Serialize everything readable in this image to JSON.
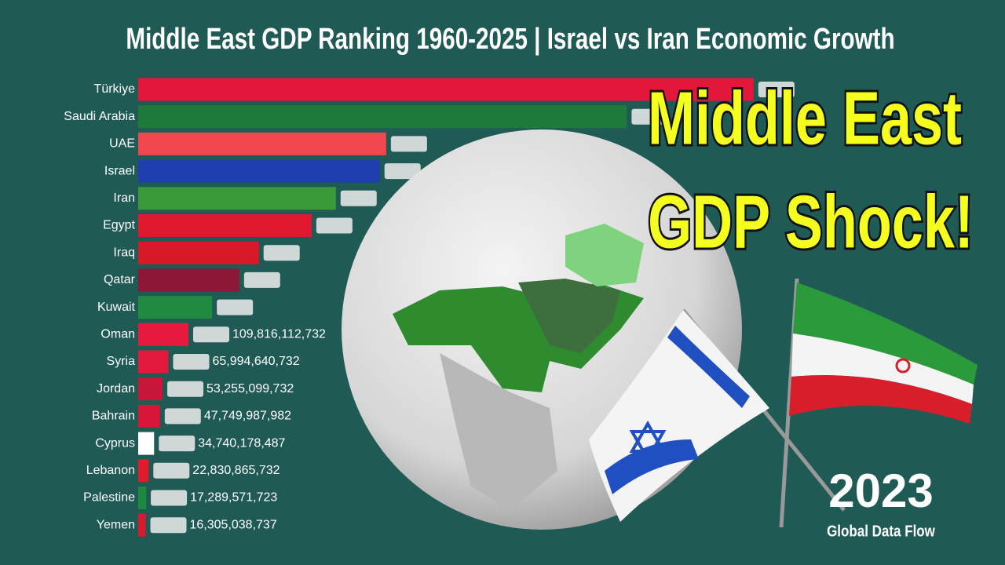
{
  "chart_data": {
    "type": "barh",
    "title": "Middle East GDP Ranking 1960-2025 | Israel vs Iran Economic Growth",
    "annotations": [
      "Middle East",
      "GDP Shock!"
    ],
    "year": "2023",
    "credit": "Global Data Flow",
    "categories": [
      "Türkiye",
      "Saudi Arabia",
      "UAE",
      "Israel",
      "Iran",
      "Egypt",
      "Iraq",
      "Qatar",
      "Kuwait",
      "Oman",
      "Syria",
      "Jordan",
      "Bahrain",
      "Cyprus",
      "Lebanon",
      "Palestine",
      "Yemen"
    ],
    "values": [
      1345000000000,
      1068000000000,
      542000000000,
      528000000000,
      432000000000,
      379000000000,
      263726000000,
      221008500000,
      161562535400,
      109816112732,
      65994640732,
      53255099732,
      47749987982,
      34740178487,
      22830865732,
      17289571723,
      16305038737
    ],
    "value_labels": [
      null,
      null,
      null,
      null,
      null,
      null,
      null,
      null,
      null,
      "109,816,112,732",
      "65,994,640,732",
      "53,255,099,732",
      "47,749,987,982",
      "34,740,178,487",
      "22,830,865,732",
      "17,289,571,723",
      "16,305,038,737"
    ],
    "colors": [
      "#e3173a",
      "#1e7a3a",
      "#f2464e",
      "#1f3fb0",
      "#3a9a3a",
      "#e0192e",
      "#d81a28",
      "#8e1637",
      "#1f8a40",
      "#e8193c",
      "#e3193b",
      "#c8153a",
      "#d61738",
      "#ffffff",
      "#e11b2c",
      "#1d8a3e",
      "#d91a30"
    ],
    "xlim": [
      0,
      1800000000000
    ]
  }
}
